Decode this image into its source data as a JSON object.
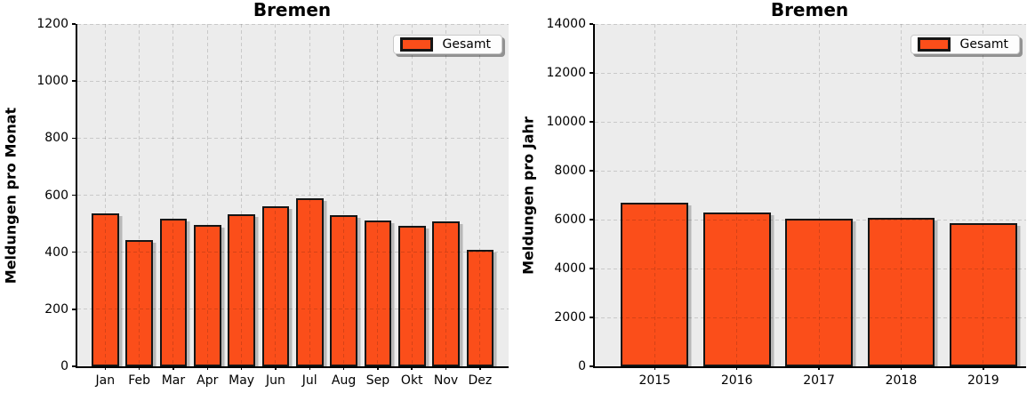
{
  "colors": {
    "bar_fill": "#FB4E1A",
    "bar_edge": "#151515",
    "plot_background": "#ECECEC",
    "figure_background": "#FFFFFF"
  },
  "chart_data": [
    {
      "type": "bar",
      "title": "Bremen",
      "xlabel": "",
      "ylabel": "Meldungen pro Monat",
      "grid": true,
      "legend_position": "upper right",
      "categories": [
        "Jan",
        "Feb",
        "Mar",
        "Apr",
        "May",
        "Jun",
        "Jul",
        "Aug",
        "Sep",
        "Okt",
        "Nov",
        "Dez"
      ],
      "series": [
        {
          "name": "Gesamt",
          "values": [
            535,
            443,
            516,
            497,
            532,
            561,
            588,
            529,
            512,
            494,
            509,
            407
          ]
        }
      ],
      "ylim": [
        0,
        1200
      ],
      "yticks": [
        0,
        200,
        400,
        600,
        800,
        1000,
        1200
      ]
    },
    {
      "type": "bar",
      "title": "Bremen",
      "xlabel": "",
      "ylabel": "Meldungen pro Jahr",
      "grid": true,
      "legend_position": "upper right",
      "categories": [
        "2015",
        "2016",
        "2017",
        "2018",
        "2019"
      ],
      "series": [
        {
          "name": "Gesamt",
          "values": [
            6680,
            6290,
            6030,
            6090,
            5840
          ]
        }
      ],
      "ylim": [
        0,
        14000
      ],
      "yticks": [
        0,
        2000,
        4000,
        6000,
        8000,
        10000,
        12000,
        14000
      ]
    }
  ]
}
